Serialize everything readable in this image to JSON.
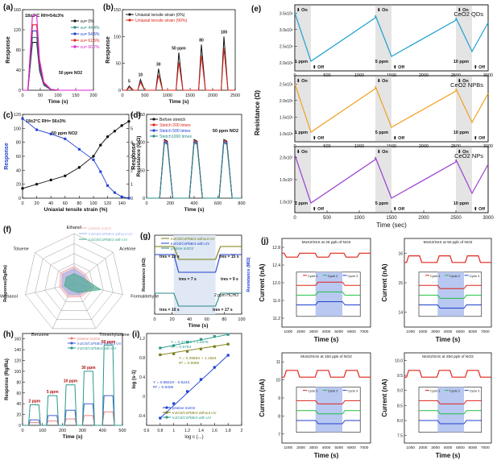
{
  "chart_data": [
    {
      "panel": "(a)",
      "type": "line",
      "annotations": [
        "18±2°C RH=54±3%",
        "50 ppm NO2"
      ],
      "ylabel": "Response",
      "xlabel": "Time (s)",
      "xlim": [
        0,
        200
      ],
      "ylim": [
        0,
        160
      ],
      "xticks": [
        0,
        50,
        100,
        150,
        200
      ],
      "yticks": [
        0,
        40,
        80,
        120,
        160
      ],
      "series": [
        {
          "name": "εu= 0%",
          "color": "#111111",
          "peak": 95
        },
        {
          "name": "εu= 44.4%",
          "color": "#2a8a8a",
          "peak": 105
        },
        {
          "name": "εu= 54.5%",
          "color": "#1f3fd0",
          "peak": 118
        },
        {
          "name": "εu= 61.5%",
          "color": "#e0241b",
          "peak": 130
        },
        {
          "name": "εu= 66.7%",
          "color": "#e020d0",
          "peak": 148
        }
      ],
      "x": [
        0,
        15,
        28,
        32,
        40,
        48,
        60,
        80,
        100,
        120,
        150,
        200
      ]
    },
    {
      "panel": "(b)",
      "type": "line",
      "ylabel": "Response",
      "xlabel": "Time (s)",
      "xlim": [
        0,
        2500
      ],
      "ylim": [
        0,
        150
      ],
      "xticks": [
        0,
        500,
        1000,
        1500,
        2000,
        2500
      ],
      "yticks": [
        0,
        50,
        100,
        150
      ],
      "series": [
        {
          "name": "Uniaxial tensile strain (0%)",
          "color": "#111111",
          "peaks": [
            8,
            20,
            40,
            70,
            85,
            100
          ]
        },
        {
          "name": "Uniaxial tensile strain (90%)",
          "color": "#e0241b",
          "peaks": [
            5,
            15,
            28,
            52,
            65,
            78
          ]
        }
      ],
      "peak_positions": [
        150,
        400,
        800,
        1250,
        1750,
        2250
      ],
      "peak_labels": [
        "5",
        "10",
        "30",
        "50 ppm",
        "80",
        "100"
      ]
    },
    {
      "panel": "(c)",
      "type": "line",
      "annotations": [
        "18±2°C RH= 56±3%",
        "50 ppm NO2"
      ],
      "xlabel": "Uniaxial tensile strain (%)",
      "ylabel": "Response",
      "y2label": "Resistance (GΩ)",
      "xlim": [
        0,
        150
      ],
      "ylim": [
        0,
        120
      ],
      "y2lim": [
        0,
        6
      ],
      "xticks": [
        0,
        20,
        40,
        60,
        80,
        100,
        120,
        140
      ],
      "yticks": [
        0,
        20,
        40,
        60,
        80,
        100,
        120
      ],
      "y2ticks": [
        0,
        1,
        2,
        3,
        4,
        5,
        6
      ],
      "series": [
        {
          "name": "Response",
          "color": "#1f3fd0",
          "x": [
            0,
            20,
            40,
            60,
            80,
            100,
            110,
            120,
            130,
            140,
            150
          ],
          "values": [
            114,
            98,
            92,
            85,
            70,
            55,
            38,
            18,
            8,
            2,
            0
          ]
        },
        {
          "name": "Resistance",
          "color": "#111111",
          "x": [
            0,
            20,
            40,
            60,
            80,
            100,
            110,
            120,
            130,
            140,
            150
          ],
          "values": [
            0.7,
            1.0,
            1.3,
            1.6,
            2.2,
            3.0,
            3.8,
            4.4,
            4.8,
            5.2,
            5.5
          ]
        }
      ]
    },
    {
      "panel": "(d)",
      "type": "line",
      "annotations": [
        "50 ppm NO2"
      ],
      "ylabel": "Response",
      "xlabel": "Time (s)",
      "xlim": [
        0,
        800
      ],
      "ylim": [
        0,
        150
      ],
      "xticks": [
        0,
        200,
        400,
        600,
        800
      ],
      "yticks": [
        0,
        50,
        100,
        150
      ],
      "series": [
        {
          "name": "Before stretch",
          "color": "#111111"
        },
        {
          "name": "Stetch 200 times",
          "color": "#e0241b"
        },
        {
          "name": "Stetch 500 times",
          "color": "#1f3fd0"
        },
        {
          "name": "Stetch1000 times",
          "color": "#2a8a8a"
        }
      ],
      "peak_positions": [
        150,
        400,
        650
      ],
      "peak_value": 105
    },
    {
      "panel": "(e)",
      "type": "line",
      "ylabel": "Resistance (Ω)",
      "xlabel": "Time (sec)",
      "xlim": [
        0,
        3000
      ],
      "xticks": [
        0,
        500,
        1000,
        1500,
        2000,
        2500,
        3000
      ],
      "on_times": [
        0,
        1250,
        2500
      ],
      "dose_labels": [
        "1 ppm",
        "5 ppm",
        "10 ppm"
      ],
      "markers": [
        "On",
        "Off"
      ],
      "subplots": [
        {
          "name": "CeO2 QDs",
          "color": "#1fa0d0",
          "yticks": [
            "2.0x10⁶",
            "2.5x10⁶",
            "3.0x10⁶",
            "3.5x10⁶"
          ]
        },
        {
          "name": "CeO2 NPBs",
          "color": "#f0a020",
          "yticks": [
            "1.0x10⁶",
            "1.5x10⁶",
            "2.0x10⁶",
            "2.5x10⁶"
          ]
        },
        {
          "name": "CeO2 NPs",
          "color": "#9a40d0",
          "yticks": [
            "1.0x10⁷",
            "1.5x10⁷",
            "2.0x10⁷"
          ]
        }
      ]
    },
    {
      "panel": "(f)",
      "type": "radar",
      "ylabel": "Response(Rg/Ra)",
      "axes": [
        "Ethanol",
        "Acetone",
        "Formaldehyde",
        "Trimethylamine",
        "Benzene",
        "Methanol",
        "Toluene"
      ],
      "series": [
        {
          "name": "pristine In2O3",
          "color": "#f0b0b0"
        },
        {
          "name": "In2O3/CsPbBr3 without UV",
          "color": "#a0b0f0"
        },
        {
          "name": "In2O3/CsPbBr3 with UV",
          "color": "#3aa88a"
        }
      ]
    },
    {
      "panel": "(g)",
      "type": "line",
      "ylabel": "Resistance (kΩ)",
      "y2label": "Resistance (MΩ)",
      "xlabel": "Time (s)",
      "xlim": [
        0,
        100
      ],
      "xticks": [
        0,
        20,
        40,
        60,
        80,
        100
      ],
      "annotations": [
        "tres = 13 s",
        "tres = 15 s",
        "tres = 7 s",
        "tres = 9 s",
        "tres = 10 s",
        "tres = 17 s",
        "2 ppm HCHO"
      ],
      "series": [
        {
          "name": "In2O3/CsPbBr3 without UV",
          "color": "#7a7a10"
        },
        {
          "name": "In2O3/CsPbBr3 with UV",
          "color": "#1f3fd0"
        },
        {
          "name": "pristine In2O3",
          "color": "#2a8a8a"
        }
      ]
    },
    {
      "panel": "(h)",
      "type": "line",
      "ylabel": "Response (Rg/Ra)",
      "xlabel": "Time (s)",
      "xlim": [
        0,
        500
      ],
      "ylim": [
        0,
        170
      ],
      "xticks": [
        0,
        100,
        200,
        300,
        400,
        500
      ],
      "yticks": [
        0,
        20,
        40,
        60,
        80,
        100,
        120,
        140,
        160
      ],
      "dose_labels": [
        "2 ppm",
        "5 ppm",
        "10 ppm",
        "30 ppm",
        "50 ppm"
      ],
      "series": [
        {
          "name": "pristine In2O3",
          "color": "#f08080",
          "peaks": [
            5,
            8,
            12,
            18,
            25
          ]
        },
        {
          "name": "In2O3/CsPbBr3 without UV",
          "color": "#4060d0",
          "peaks": [
            10,
            18,
            28,
            40,
            55
          ]
        },
        {
          "name": "In2O3/CsPbBr3 with UV",
          "color": "#2a9a8a",
          "peaks": [
            38,
            55,
            75,
            100,
            148
          ]
        }
      ]
    },
    {
      "panel": "(i)",
      "type": "scatter",
      "ylabel": "log (s-1)",
      "xlabel": "log c (...)",
      "xlim": [
        0.6,
        2.0
      ],
      "ylim": [
        -0.6,
        1.3
      ],
      "xticks": [
        0.6,
        0.8,
        1.0,
        1.2,
        1.4,
        1.6,
        1.8,
        2.0
      ],
      "fits": [
        "Y = 0.3712X + 1.4578  R² = 0.9784",
        "Y = 0.2958X + 1.1584  R² = 0.9689",
        "Y = 0.9822X - 0.5242  R² = 0.9405"
      ],
      "series": [
        {
          "name": "pristine In2O3",
          "color": "#1f3fd0",
          "x": [
            0.8,
            1.0,
            1.2,
            1.4,
            1.6,
            1.8
          ],
          "values": [
            -0.45,
            -0.15,
            0.1,
            0.35,
            0.6,
            0.85
          ]
        },
        {
          "name": "In2O3/CsPbBr3 without UV",
          "color": "#7a7a10",
          "x": [
            0.8,
            1.0,
            1.2,
            1.4,
            1.6,
            1.8
          ],
          "values": [
            0.86,
            0.88,
            0.93,
            0.98,
            1.03,
            1.08
          ]
        },
        {
          "name": "In2O3/CsPbBr3 with UV",
          "color": "#2a9a8a",
          "x": [
            0.8,
            1.0,
            1.2,
            1.4,
            1.6,
            1.8
          ],
          "values": [
            1.0,
            1.05,
            1.12,
            1.18,
            1.24,
            1.28
          ]
        }
      ]
    },
    {
      "panel": "(j)",
      "type": "line",
      "ylabel": "Current (nA)",
      "xlabel": "Time (s)",
      "xticks": [
        1000,
        2000,
        3000,
        4000,
        5000,
        6000,
        7000
      ],
      "inset_legend": [
        "Cycle 1",
        "Cycle 2",
        "Cycle 3"
      ],
      "subplots": [
        {
          "title": "MoS2/SnS at 25 ppb of NO2",
          "yticks": [
            "11.2",
            "11.6",
            "12.0",
            "12.4",
            "12.8"
          ]
        },
        {
          "title": "MoS2/SnS at 50 ppb of NO2",
          "yticks": [
            "14",
            "15",
            "16"
          ]
        },
        {
          "title": "MoS2/SnS at 150 ppb of NO2",
          "yticks": [
            "7",
            "8",
            "9",
            "10",
            "11"
          ]
        },
        {
          "title": "MoS2/SnS at 250 ppb of NO2",
          "yticks": [
            "7.5",
            "8.0",
            "8.5",
            "9.0",
            "9.5",
            "10.0"
          ]
        }
      ]
    }
  ],
  "labels": {
    "a": "(a)",
    "b": "(b)",
    "c": "(c)",
    "d": "(d)",
    "e": "(e)",
    "f": "(f)",
    "g": "(g)",
    "h": "(h)",
    "i": "(i)",
    "j": "(j)"
  }
}
